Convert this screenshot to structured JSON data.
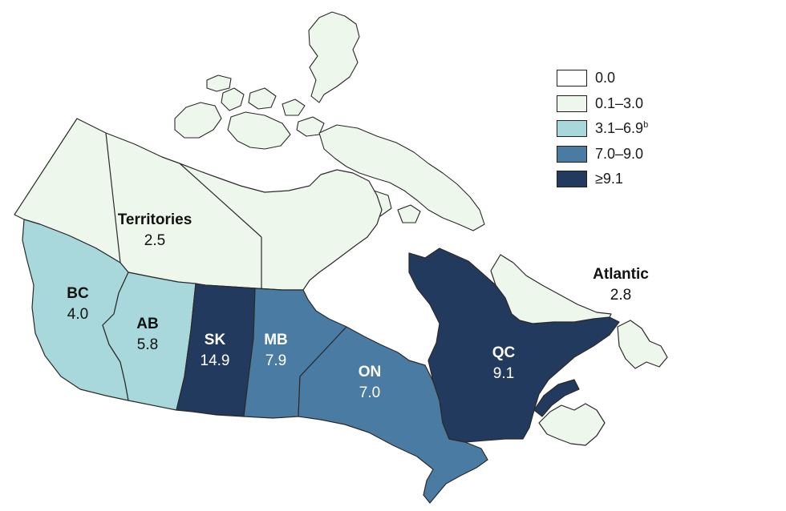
{
  "colors": {
    "c0": "#ffffff",
    "c1": "#eef7ec",
    "c2": "#a8d8db",
    "c3": "#4a7ba3",
    "c4": "#223a5e",
    "stroke": "#2a2a2a"
  },
  "legend": [
    {
      "label": "0.0",
      "sup": "",
      "color_key": "c0"
    },
    {
      "label": "0.1–3.0",
      "sup": "",
      "color_key": "c1"
    },
    {
      "label": "3.1–6.9",
      "sup": "b",
      "color_key": "c2"
    },
    {
      "label": "7.0–9.0",
      "sup": "",
      "color_key": "c3"
    },
    {
      "label": "≥9.1",
      "sup": "",
      "color_key": "c4"
    }
  ],
  "regions": {
    "territories": {
      "name": "Territories",
      "value": "2.5",
      "color_key": "c1"
    },
    "bc": {
      "name": "BC",
      "value": "4.0",
      "color_key": "c2"
    },
    "ab": {
      "name": "AB",
      "value": "5.8",
      "color_key": "c2"
    },
    "sk": {
      "name": "SK",
      "value": "14.9",
      "color_key": "c4"
    },
    "mb": {
      "name": "MB",
      "value": "7.9",
      "color_key": "c3"
    },
    "on": {
      "name": "ON",
      "value": "7.0",
      "color_key": "c3"
    },
    "qc": {
      "name": "QC",
      "value": "9.1",
      "color_key": "c4"
    },
    "atlantic": {
      "name": "Atlantic",
      "value": "2.8",
      "color_key": "c1"
    }
  }
}
